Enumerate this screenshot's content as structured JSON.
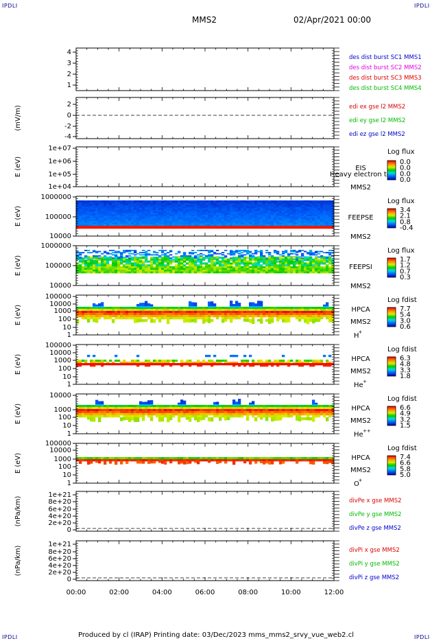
{
  "header": {
    "spacecraft": "MMS2",
    "date": "02/Apr/2021 00:00",
    "corner_left_top": "IPDLI",
    "corner_right_top": "IPDLI",
    "corner_left_bottom": "IPDLI",
    "corner_right_bottom": "IPDLI"
  },
  "footer": {
    "text": "Produced by cl (IRAP)   Printing date: 03/Dec/2023   mms_mms2_srvy_vue_web2.cl"
  },
  "colors": {
    "blue": "#0000cc",
    "magenta": "#e000e0",
    "red": "#dd0000",
    "green": "#00bb00"
  },
  "chart_data": [
    {
      "type": "line",
      "id": "p1",
      "ylabel": "",
      "yticks": [
        "4",
        "3",
        "2",
        "1"
      ],
      "ylim": [
        0.6,
        4.4
      ],
      "legend": [
        {
          "label": "des dist burst SC1 MMS1",
          "color": "#0000cc"
        },
        {
          "label": "des dist burst SC2 MMS2",
          "color": "#e000e0"
        },
        {
          "label": "des dist burst SC3 MMS3",
          "color": "#dd0000"
        },
        {
          "label": "des dist burst SC4 MMS4",
          "color": "#00bb00"
        }
      ],
      "series": []
    },
    {
      "type": "line",
      "id": "p2",
      "ylabel": "(mV/m)",
      "yticks": [
        "2",
        "0",
        "-2",
        "-4"
      ],
      "ylim": [
        -4.5,
        3
      ],
      "legend": [
        {
          "label": "edi ex gse l2 MMS2",
          "color": "#dd0000"
        },
        {
          "label": "edi ey gse l2 MMS2",
          "color": "#00bb00"
        },
        {
          "label": "edi ez gse l2 MMS2",
          "color": "#0000cc"
        }
      ],
      "zero_line": true
    },
    {
      "type": "heatmap",
      "id": "p3",
      "ylabel": "E (eV)",
      "yticks": [
        "1e+07",
        "1e+06",
        "1e+05",
        "1e+04"
      ],
      "ylog": true,
      "ylim": [
        10000,
        10000000
      ],
      "instrument": "EIS",
      "overlay_text": "Heavy electron tof",
      "spacecraft": "MMS2",
      "colorbar_title": "Log flux",
      "colorbar_ticks": [
        "0.0",
        "0.0",
        "0.0",
        "0.0"
      ],
      "data_present": false
    },
    {
      "type": "heatmap",
      "id": "p4",
      "ylabel": "E (eV)",
      "yticks": [
        "1000000",
        "100000",
        "10000"
      ],
      "ylog": true,
      "ylim": [
        10000,
        1000000
      ],
      "instrument": "FEEPSE",
      "spacecraft": "MMS2",
      "colorbar_title": "Log flux",
      "colorbar_ticks": [
        "3.4",
        "2.1",
        "0.8",
        "-0.4"
      ]
    },
    {
      "type": "heatmap",
      "id": "p5",
      "ylabel": "E (eV)",
      "yticks": [
        "1000000",
        "100000",
        "10000"
      ],
      "ylog": true,
      "ylim": [
        10000,
        1000000
      ],
      "instrument": "FEEPSI",
      "spacecraft": "MMS2",
      "colorbar_title": "Log flux",
      "colorbar_ticks": [
        "1.7",
        "1.2",
        "0.7",
        "0.3"
      ]
    },
    {
      "type": "heatmap",
      "id": "p6",
      "ylabel": "E (eV)",
      "yticks": [
        "100000",
        "10000",
        "1000",
        "100",
        "10",
        "1"
      ],
      "ylog": true,
      "ylim": [
        1,
        100000
      ],
      "instrument": "HPCA",
      "spacecraft": "MMS2",
      "species": "H",
      "species_sup": "+",
      "colorbar_title": "Log fdist",
      "colorbar_ticks": [
        "7.7",
        "5.4",
        "3.0",
        "0.6"
      ]
    },
    {
      "type": "heatmap",
      "id": "p7",
      "ylabel": "E (eV)",
      "yticks": [
        "100000",
        "10000",
        "1000",
        "100",
        "10",
        "1"
      ],
      "ylog": true,
      "ylim": [
        1,
        100000
      ],
      "instrument": "HPCA",
      "spacecraft": "MMS2",
      "species": "He",
      "species_sup": "+",
      "colorbar_title": "Log fdist",
      "colorbar_ticks": [
        "6.3",
        "4.8",
        "3.3",
        "1.8"
      ]
    },
    {
      "type": "heatmap",
      "id": "p8",
      "ylabel": "E (eV)",
      "yticks": [
        "10000",
        "1000",
        "100",
        "10",
        "1"
      ],
      "ylog": true,
      "ylim": [
        1,
        10000
      ],
      "instrument": "HPCA",
      "spacecraft": "MMS2",
      "species": "He",
      "species_sup": "++",
      "colorbar_title": "Log fdist",
      "colorbar_ticks": [
        "6.6",
        "4.9",
        "3.2",
        "1.5"
      ]
    },
    {
      "type": "heatmap",
      "id": "p9",
      "ylabel": "E (eV)",
      "yticks": [
        "100000",
        "10000",
        "1000",
        "100",
        "10",
        "1"
      ],
      "ylog": true,
      "ylim": [
        1,
        100000
      ],
      "instrument": "HPCA",
      "spacecraft": "MMS2",
      "species": "O",
      "species_sup": "+",
      "colorbar_title": "Log fdist",
      "colorbar_ticks": [
        "7.4",
        "6.6",
        "5.8",
        "5.0"
      ]
    },
    {
      "type": "line",
      "id": "p10",
      "ylabel": "(nPa/km)",
      "yticks": [
        "1e+21",
        "8e+20",
        "6e+20",
        "4e+20",
        "2e+20",
        "0"
      ],
      "ylim": [
        -1e+20,
        1.1e+21
      ],
      "legend": [
        {
          "label": "divPe x gse MMS2",
          "color": "#dd0000"
        },
        {
          "label": "divPe y gse MMS2",
          "color": "#00bb00"
        },
        {
          "label": "divPe z gse MMS2",
          "color": "#0000cc"
        }
      ],
      "zero_line": true
    },
    {
      "type": "line",
      "id": "p11",
      "ylabel": "(nPa/km)",
      "yticks": [
        "1e+21",
        "8e+20",
        "6e+20",
        "4e+20",
        "2e+20",
        "0"
      ],
      "ylim": [
        -1e+20,
        1.1e+21
      ],
      "legend": [
        {
          "label": "divPi x gse MMS2",
          "color": "#dd0000"
        },
        {
          "label": "divPi y gse MMS2",
          "color": "#00bb00"
        },
        {
          "label": "divPi z gse MMS2",
          "color": "#0000cc"
        }
      ],
      "zero_line": true
    }
  ],
  "x_axis": {
    "ticks": [
      "00:00",
      "02:00",
      "04:00",
      "06:00",
      "08:00",
      "10:00",
      "12:00"
    ],
    "xlim": [
      "00:00",
      "12:00"
    ]
  }
}
